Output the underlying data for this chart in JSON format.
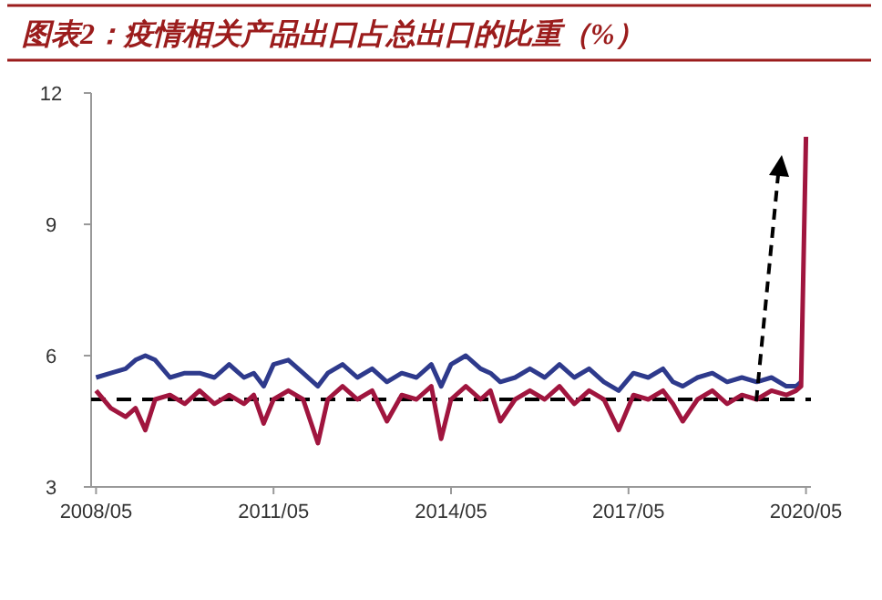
{
  "chart_data": {
    "type": "line",
    "title": "图表2：疫情相关产品出口占总出口的比重（%）",
    "x": [
      "2008-05",
      "2008-08",
      "2008-11",
      "2009-01",
      "2009-03",
      "2009-05",
      "2009-08",
      "2009-11",
      "2010-02",
      "2010-05",
      "2010-08",
      "2010-11",
      "2011-01",
      "2011-03",
      "2011-05",
      "2011-08",
      "2011-11",
      "2012-02",
      "2012-04",
      "2012-07",
      "2012-10",
      "2013-01",
      "2013-04",
      "2013-07",
      "2013-10",
      "2014-01",
      "2014-03",
      "2014-05",
      "2014-08",
      "2014-11",
      "2015-01",
      "2015-03",
      "2015-06",
      "2015-09",
      "2015-12",
      "2016-03",
      "2016-06",
      "2016-09",
      "2016-12",
      "2017-03",
      "2017-06",
      "2017-09",
      "2017-12",
      "2018-02",
      "2018-04",
      "2018-07",
      "2018-10",
      "2019-01",
      "2019-04",
      "2019-07",
      "2019-10",
      "2020-01",
      "2020-03",
      "2020-04",
      "2020-05"
    ],
    "series": [
      {
        "color": "#2e3a8c",
        "values": [
          5.5,
          5.6,
          5.7,
          5.9,
          6.0,
          5.9,
          5.5,
          5.6,
          5.6,
          5.5,
          5.8,
          5.5,
          5.6,
          5.3,
          5.8,
          5.9,
          5.6,
          5.3,
          5.6,
          5.8,
          5.5,
          5.7,
          5.4,
          5.6,
          5.5,
          5.8,
          5.3,
          5.8,
          6.0,
          5.7,
          5.6,
          5.4,
          5.5,
          5.7,
          5.5,
          5.8,
          5.5,
          5.7,
          5.4,
          5.2,
          5.6,
          5.5,
          5.7,
          5.4,
          5.3,
          5.5,
          5.6,
          5.4,
          5.5,
          5.4,
          5.5,
          5.3,
          5.3,
          5.4,
          null
        ]
      },
      {
        "color": "#a0153e",
        "values": [
          5.2,
          4.8,
          4.6,
          4.8,
          4.3,
          5.0,
          5.1,
          4.9,
          5.2,
          4.9,
          5.1,
          4.9,
          5.1,
          4.45,
          5.0,
          5.2,
          5.0,
          4.0,
          5.0,
          5.3,
          5.0,
          5.2,
          4.5,
          5.1,
          5.0,
          5.3,
          4.1,
          5.0,
          5.3,
          5.0,
          5.2,
          4.5,
          5.0,
          5.2,
          5.0,
          5.3,
          4.9,
          5.2,
          5.0,
          4.3,
          5.1,
          5.0,
          5.2,
          4.9,
          4.5,
          5.0,
          5.2,
          4.9,
          5.1,
          5.0,
          5.2,
          5.1,
          5.2,
          5.3,
          11.0
        ]
      }
    ],
    "xlim": [
      "2008-04",
      "2020-06"
    ],
    "xticks": [
      {
        "value": "2008-05",
        "label": "2008/05"
      },
      {
        "value": "2011-05",
        "label": "2011/05"
      },
      {
        "value": "2014-05",
        "label": "2014/05"
      },
      {
        "value": "2017-05",
        "label": "2017/05"
      },
      {
        "value": "2020-05",
        "label": "2020/05"
      }
    ],
    "ylim": [
      3,
      12
    ],
    "yticks": [
      3,
      6,
      9,
      12
    ],
    "ref_lines": [
      {
        "axis": "y",
        "value": 5,
        "color": "#000000",
        "line_style": "dashed"
      }
    ],
    "grid": false,
    "marker": "none",
    "line_style": "solid"
  }
}
